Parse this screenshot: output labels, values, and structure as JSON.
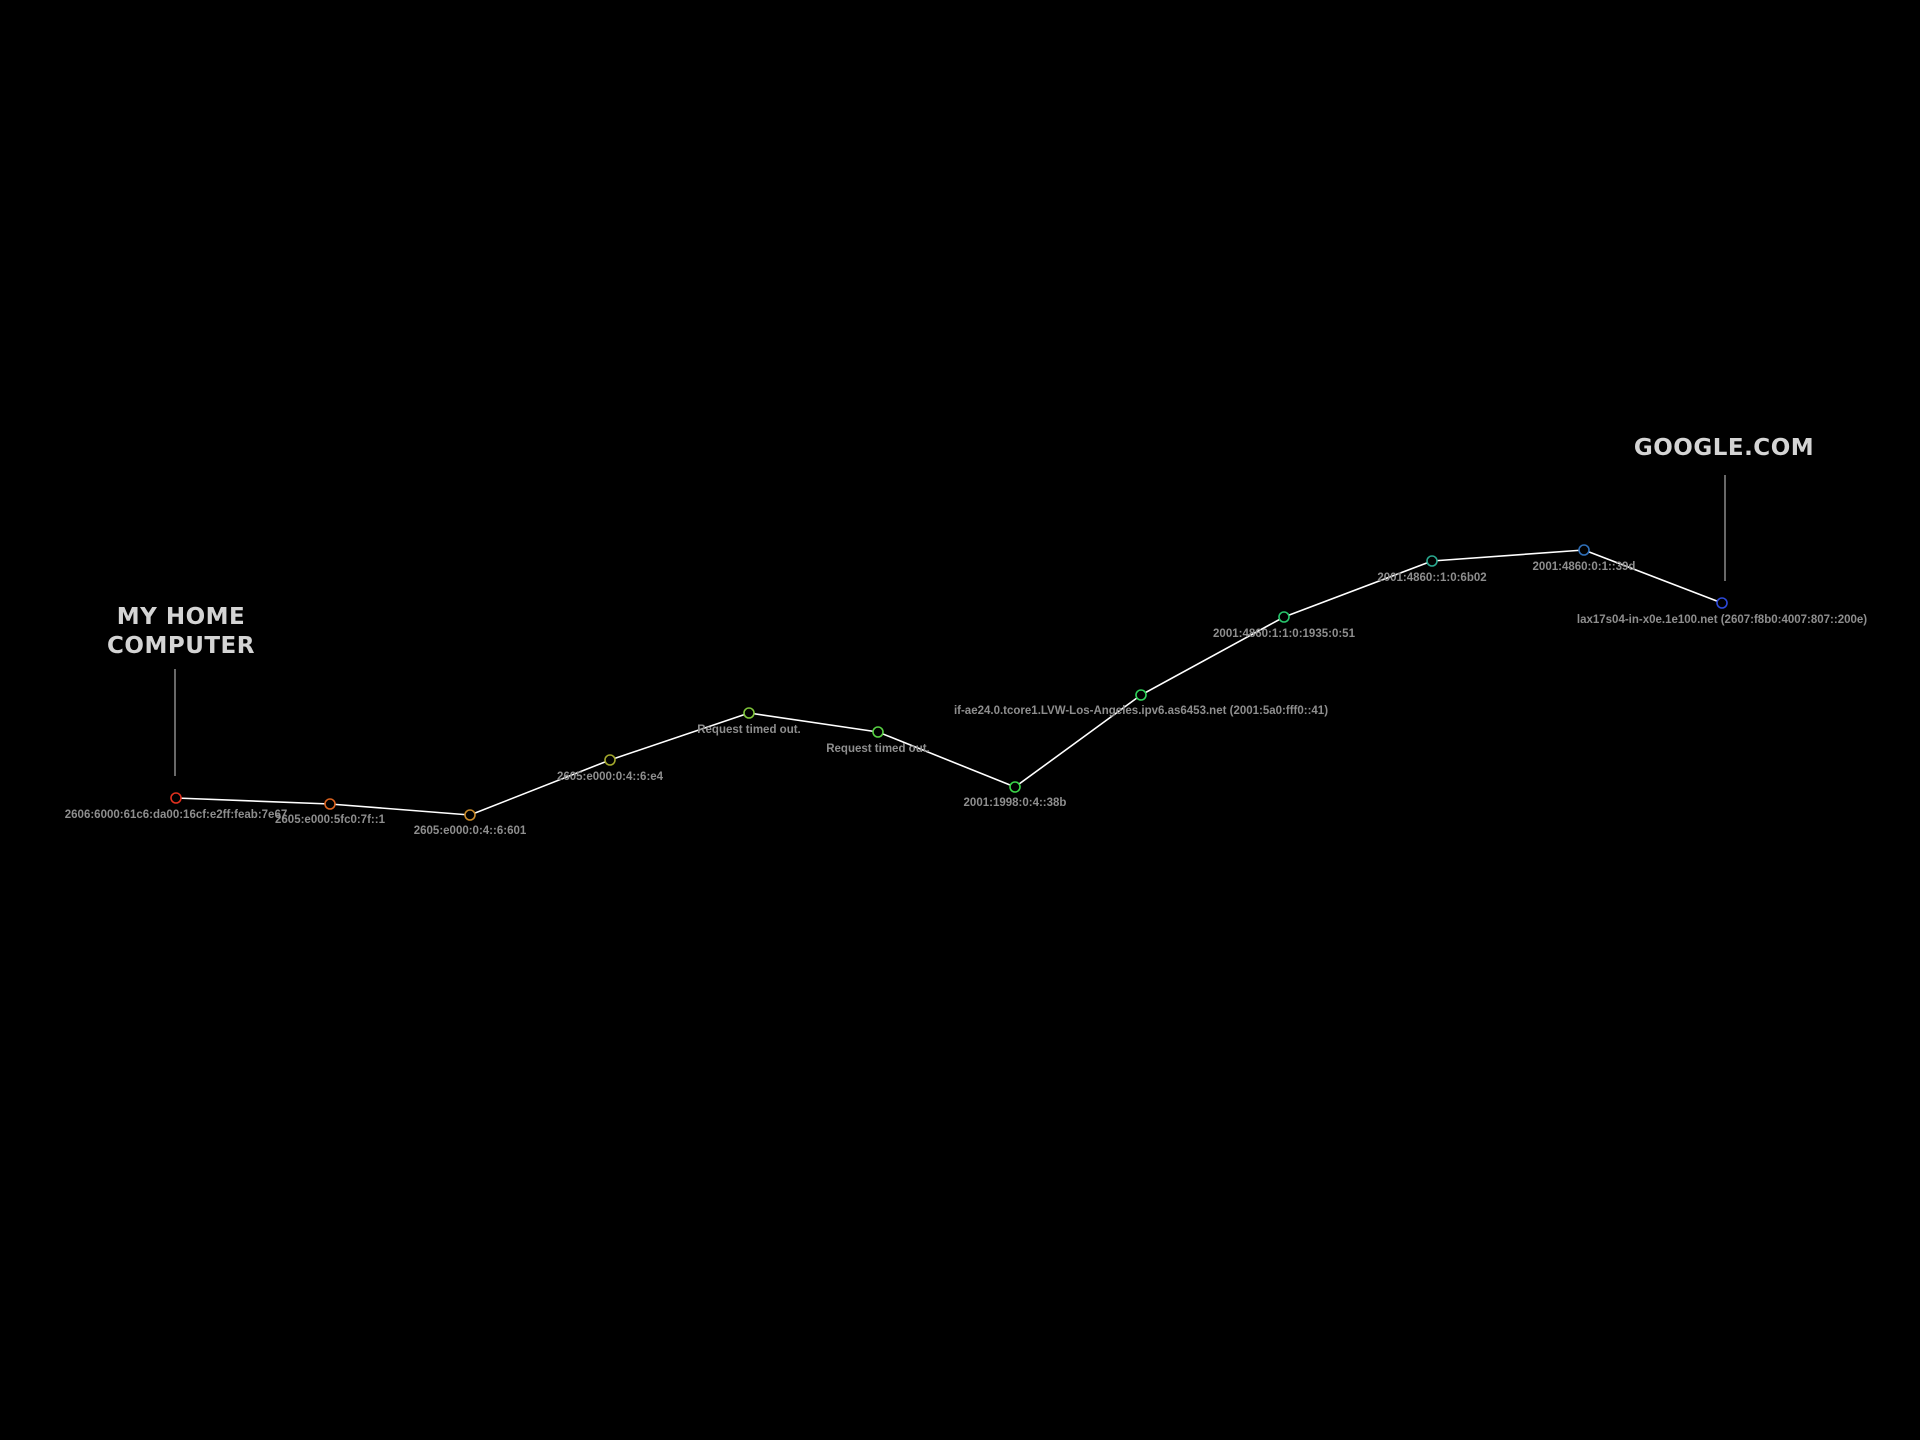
{
  "endpoints": {
    "source": {
      "label": "MY HOME\nCOMPUTER"
    },
    "destination": {
      "label": "GOOGLE.COM"
    }
  },
  "hops": [
    {
      "label": "2606:6000:61c6:da00:16cf:e2ff:feab:7e67",
      "color": "#e0301e"
    },
    {
      "label": "2605:e000:5fc0:7f::1",
      "color": "#d9621f"
    },
    {
      "label": "2605:e000:0:4::6:601",
      "color": "#c98a2a"
    },
    {
      "label": "2605:e000:0:4::6:e4",
      "color": "#a3a82c"
    },
    {
      "label": "Request timed out.",
      "color": "#7ec43a"
    },
    {
      "label": "Request timed out.",
      "color": "#58d043"
    },
    {
      "label": "2001:1998:0:4::38b",
      "color": "#3ad548"
    },
    {
      "label": "if-ae24.0.tcore1.LVW-Los-Angeles.ipv6.as6453.net (2001:5a0:fff0::41)",
      "color": "#2fd35a"
    },
    {
      "label": "2001:4860:1:1:0:1935:0:51",
      "color": "#27c56c"
    },
    {
      "label": "2001:4860::1:0:6b02",
      "color": "#2aa88f"
    },
    {
      "label": "2001:4860:0:1::39d",
      "color": "#2f6fb8"
    },
    {
      "label": "lax17s04-in-x0e.1e100.net (2607:f8b0:4007:807::200e)",
      "color": "#2c48d8"
    }
  ]
}
